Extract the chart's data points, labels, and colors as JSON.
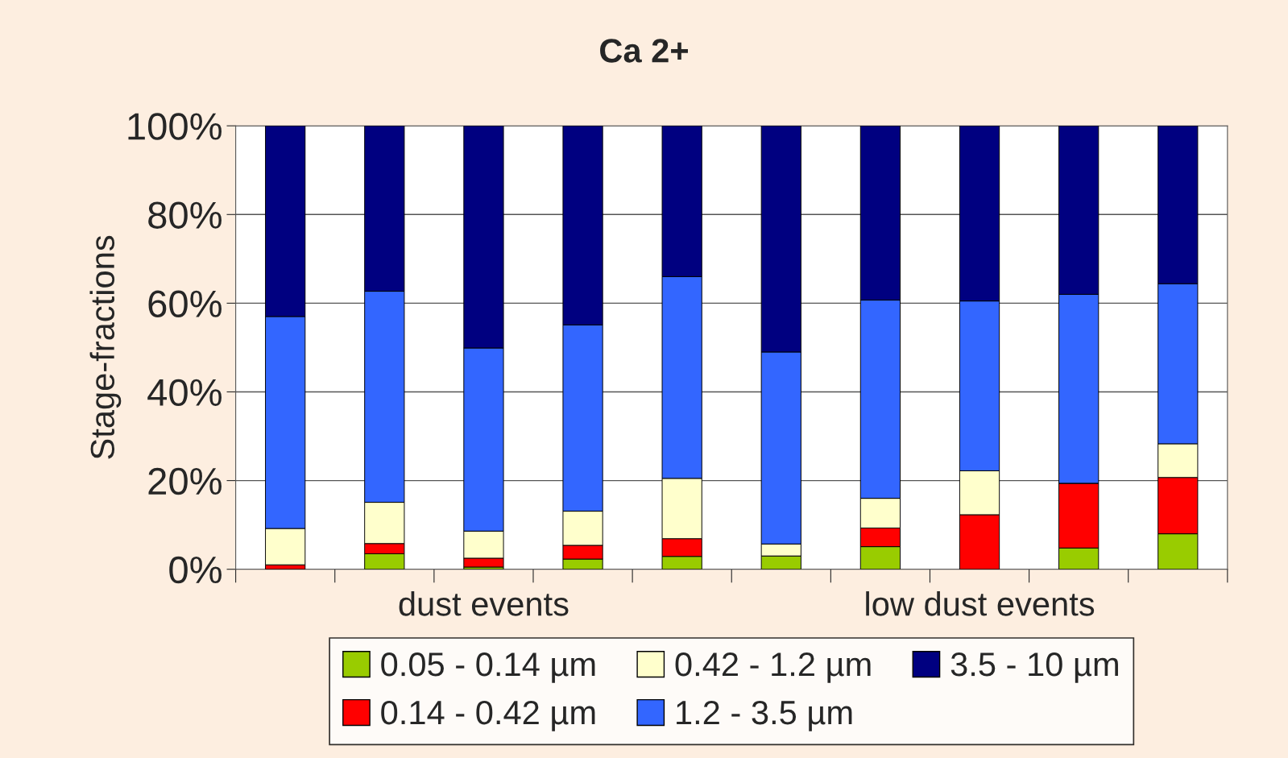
{
  "chart_data": {
    "type": "bar",
    "title": "Ca 2+",
    "ylabel": "Stage-fractions",
    "stacked": true,
    "categories": [
      null,
      null,
      null,
      null,
      null,
      null,
      null,
      null,
      null,
      null
    ],
    "series": [
      {
        "name": "0.05 - 0.14 µm",
        "color": "#99cc00",
        "values": [
          0,
          3.5,
          0.5,
          2.3,
          2.9,
          3.0,
          5.1,
          0,
          4.8,
          8.0
        ]
      },
      {
        "name": "0.14 - 0.42 µm",
        "color": "#ff0000",
        "values": [
          1.0,
          2.3,
          2.0,
          3.1,
          4.0,
          0,
          4.2,
          12.3,
          14.6,
          12.7
        ]
      },
      {
        "name": "0.42 - 1.2 µm",
        "color": "#ffffcc",
        "values": [
          8.2,
          9.3,
          6.1,
          7.7,
          13.6,
          2.7,
          6.7,
          9.9,
          0,
          7.6
        ]
      },
      {
        "name": "1.2 - 3.5 µm",
        "color": "#3366ff",
        "values": [
          47.8,
          47.6,
          41.3,
          42.0,
          45.5,
          43.3,
          44.7,
          38.3,
          42.6,
          36.1
        ]
      },
      {
        "name": "3.5 - 10 µm",
        "color": "#000080",
        "values": [
          43.0,
          37.3,
          50.1,
          44.9,
          34.0,
          51.0,
          39.3,
          39.5,
          38.0,
          35.6
        ]
      }
    ],
    "ylim": [
      0,
      100
    ],
    "yticks": [
      {
        "value": 0,
        "label": "0%"
      },
      {
        "value": 20,
        "label": "20%"
      },
      {
        "value": 40,
        "label": "40%"
      },
      {
        "value": 60,
        "label": "60%"
      },
      {
        "value": 80,
        "label": "80%"
      },
      {
        "value": 100,
        "label": "100%"
      }
    ],
    "annotations": [
      "dust events",
      "low dust events"
    ],
    "grid": "y",
    "legend": "bottom"
  }
}
